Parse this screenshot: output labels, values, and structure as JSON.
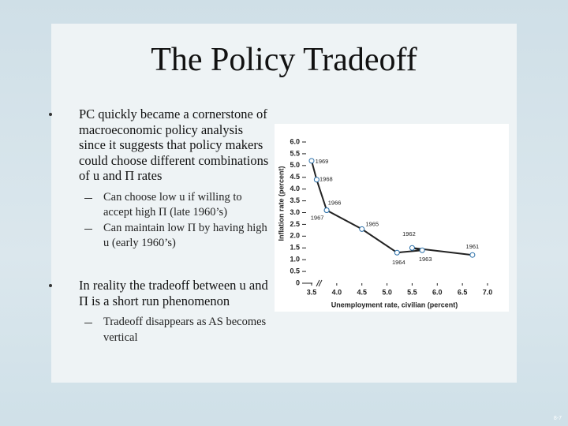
{
  "title": "The Policy Tradeoff",
  "bullets": [
    {
      "text": "PC quickly became a cornerstone of macroeconomic policy analysis since it suggests that policy makers could choose different combinations of u and Π rates",
      "sub": [
        "Can choose low u if willing to accept high Π (late 1960’s)",
        "Can maintain low Π by having high u (early 1960’s)"
      ]
    },
    {
      "text": "In reality the tradeoff between u and Π is a short run phenomenon",
      "sub": [
        "Tradeoff disappears as AS becomes vertical"
      ]
    }
  ],
  "footer": "8-7",
  "chart_data": {
    "type": "line",
    "x_label": "Unemployment rate, civilian (percent)",
    "y_label": "Inflation rate (percent)",
    "series": [
      {
        "color": "#222222",
        "x": [
          6.7,
          5.5,
          5.7,
          5.2,
          4.5,
          3.8,
          3.8,
          3.6,
          3.5
        ],
        "values": [
          1.2,
          1.5,
          1.4,
          1.3,
          2.3,
          3.1,
          3.1,
          4.4,
          5.2
        ],
        "labels": [
          "1961",
          "1962",
          "1963",
          "1964",
          "1965",
          "1966",
          "1967",
          "1968",
          "1969"
        ]
      }
    ],
    "xlim": [
      3.5,
      7.0
    ],
    "xticks": [
      3.5,
      {
        "value": 4,
        "label": "4.0"
      },
      4.5,
      {
        "value": 5,
        "label": "5.0"
      },
      5.5,
      {
        "value": 6,
        "label": "6.0"
      },
      6.5,
      {
        "value": 7,
        "label": "7.0"
      }
    ],
    "ylim": [
      0,
      6.0
    ],
    "yticks": [
      0,
      0.5,
      {
        "value": 1,
        "label": "1.0"
      },
      1.5,
      {
        "value": 2,
        "label": "2.0"
      },
      2.5,
      {
        "value": 3,
        "label": "3.0"
      },
      3.5,
      {
        "value": 4,
        "label": "4.0"
      },
      4.5,
      {
        "value": 5,
        "label": "5.0"
      },
      5.5,
      {
        "value": 6,
        "label": "6.0"
      }
    ]
  }
}
